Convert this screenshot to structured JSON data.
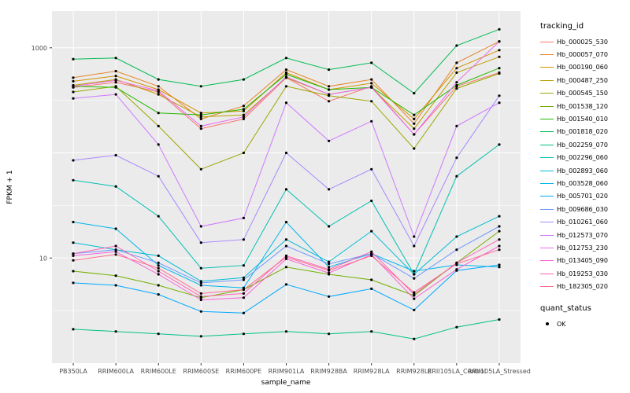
{
  "chart_data": {
    "type": "line",
    "title": "",
    "xlabel": "sample_name",
    "ylabel": "FPKM + 1",
    "y_scale": "log10",
    "y_domain_log10": [
      0,
      3.35
    ],
    "y_ticks": [
      {
        "value": 10,
        "label": "10"
      },
      {
        "value": 1000,
        "label": "1000"
      }
    ],
    "grid": "on",
    "legend_position": "right",
    "categories": [
      "PB350LA",
      "RRIM600LA",
      "RRIM600LE",
      "RRIM600SE",
      "RRIM600PE",
      "RRIM901LA",
      "RRIM928BA",
      "RRIM928LA",
      "RRIM928LE",
      "RRII105LA_Control",
      "RRII105LA_Stressed"
    ],
    "series": [
      {
        "name": "Hb_000025_530",
        "color": "#F8766D",
        "values": [
          420,
          470,
          380,
          170,
          210,
          520,
          310,
          430,
          150,
          430,
          580
        ]
      },
      {
        "name": "Hb_000057_070",
        "color": "#E88526",
        "values": [
          520,
          600,
          430,
          210,
          280,
          620,
          430,
          500,
          190,
          720,
          1150
        ]
      },
      {
        "name": "Hb_000190_060",
        "color": "#D39200",
        "values": [
          480,
          540,
          400,
          240,
          250,
          580,
          400,
          460,
          210,
          640,
          950
        ]
      },
      {
        "name": "Hb_000487_250",
        "color": "#BB9D00",
        "values": [
          440,
          500,
          360,
          220,
          230,
          520,
          360,
          420,
          170,
          580,
          820
        ]
      },
      {
        "name": "Hb_000545_150",
        "color": "#9CA700",
        "values": [
          380,
          430,
          180,
          70,
          100,
          430,
          350,
          310,
          110,
          410,
          570
        ]
      },
      {
        "name": "Hb_001538_120",
        "color": "#72B000",
        "values": [
          7.5,
          6.8,
          5.5,
          4.2,
          5.0,
          8.2,
          7.0,
          6.2,
          4.4,
          9.0,
          18
        ]
      },
      {
        "name": "Hb_001540_010",
        "color": "#24B700",
        "values": [
          430,
          420,
          240,
          230,
          260,
          560,
          400,
          420,
          230,
          440,
          640
        ]
      },
      {
        "name": "Hb_001818_020",
        "color": "#00BC51",
        "values": [
          780,
          800,
          500,
          430,
          500,
          800,
          620,
          720,
          370,
          1050,
          1500
        ]
      },
      {
        "name": "Hb_002259_070",
        "color": "#00C087",
        "values": [
          2.1,
          2.0,
          1.9,
          1.8,
          1.9,
          2.0,
          1.9,
          2.0,
          1.7,
          2.2,
          2.6
        ]
      },
      {
        "name": "Hb_002296_060",
        "color": "#00C0B2",
        "values": [
          55,
          48,
          25,
          8.0,
          8.5,
          45,
          20,
          35,
          7.0,
          60,
          120
        ]
      },
      {
        "name": "Hb_002893_060",
        "color": "#00BDD4",
        "values": [
          14,
          12,
          10.5,
          6.0,
          6.5,
          15,
          9.2,
          18,
          7.0,
          16,
          25
        ]
      },
      {
        "name": "Hb_003528_060",
        "color": "#00B5EC",
        "values": [
          22,
          19,
          8.5,
          5.5,
          5.2,
          22,
          8.2,
          11,
          7.5,
          8.6,
          8.2
        ]
      },
      {
        "name": "Hb_005701_020",
        "color": "#00A9FF",
        "values": [
          5.8,
          5.5,
          4.5,
          3.1,
          3.0,
          5.6,
          4.3,
          5.1,
          3.2,
          7.6,
          8.6
        ]
      },
      {
        "name": "Hb_009686_030",
        "color": "#7099FF",
        "values": [
          11,
          12,
          9.0,
          5.8,
          6.2,
          13,
          8.8,
          11,
          6.4,
          12,
          20
        ]
      },
      {
        "name": "Hb_010261_060",
        "color": "#A886FF",
        "values": [
          85,
          95,
          60,
          14,
          15,
          100,
          45,
          70,
          13,
          90,
          350
        ]
      },
      {
        "name": "Hb_012573_070",
        "color": "#CF78FF",
        "values": [
          330,
          360,
          120,
          20,
          24,
          300,
          130,
          200,
          16,
          180,
          300
        ]
      },
      {
        "name": "Hb_012753_230",
        "color": "#EA69F0",
        "values": [
          430,
          490,
          390,
          180,
          220,
          530,
          360,
          420,
          150,
          470,
          1150
        ]
      },
      {
        "name": "Hb_013405_090",
        "color": "#FB61D7",
        "values": [
          10.5,
          11.5,
          7.0,
          4.0,
          4.2,
          9.8,
          7.2,
          10.8,
          4.1,
          7.8,
          13
        ]
      },
      {
        "name": "Hb_019253_030",
        "color": "#FF65B8",
        "values": [
          11,
          13,
          7.5,
          4.3,
          4.6,
          10.5,
          7.8,
          11.5,
          4.5,
          9.0,
          15
        ]
      },
      {
        "name": "Hb_182305_020",
        "color": "#FF6C91",
        "values": [
          9.5,
          10.8,
          8.0,
          4.6,
          5.0,
          10.2,
          7.6,
          10.5,
          4.7,
          8.8,
          12
        ]
      }
    ],
    "colors": {
      "panel_background": "#EBEBEB",
      "gridline": "#FFFFFF",
      "point": "#000000",
      "tick": "#333333",
      "tick_label": "#4D4D4D"
    }
  },
  "legend": {
    "tracking_title": "tracking_id",
    "quant_title": "quant_status",
    "quant_items": [
      {
        "label": "OK",
        "symbol": "point"
      }
    ]
  }
}
